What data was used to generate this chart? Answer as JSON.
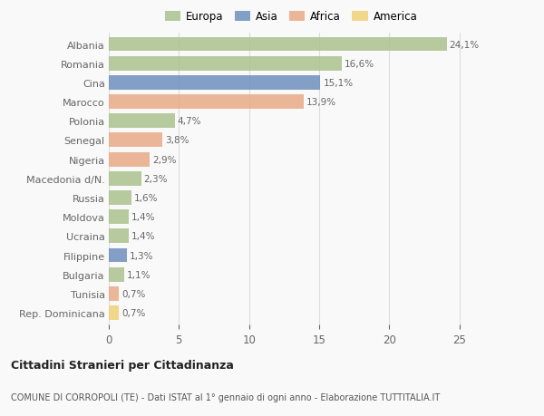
{
  "countries": [
    "Albania",
    "Romania",
    "Cina",
    "Marocco",
    "Polonia",
    "Senegal",
    "Nigeria",
    "Macedonia d/N.",
    "Russia",
    "Moldova",
    "Ucraina",
    "Filippine",
    "Bulgaria",
    "Tunisia",
    "Rep. Dominicana"
  ],
  "values": [
    24.1,
    16.6,
    15.1,
    13.9,
    4.7,
    3.8,
    2.9,
    2.3,
    1.6,
    1.4,
    1.4,
    1.3,
    1.1,
    0.7,
    0.7
  ],
  "labels": [
    "24,1%",
    "16,6%",
    "15,1%",
    "13,9%",
    "4,7%",
    "3,8%",
    "2,9%",
    "2,3%",
    "1,6%",
    "1,4%",
    "1,4%",
    "1,3%",
    "1,1%",
    "0,7%",
    "0,7%"
  ],
  "continents": [
    "Europa",
    "Europa",
    "Asia",
    "Africa",
    "Europa",
    "Africa",
    "Africa",
    "Europa",
    "Europa",
    "Europa",
    "Europa",
    "Asia",
    "Europa",
    "Africa",
    "America"
  ],
  "colors": {
    "Europa": "#a8c08a",
    "Asia": "#6b8cba",
    "Africa": "#e8a882",
    "America": "#f0d070"
  },
  "legend_labels": [
    "Europa",
    "Asia",
    "Africa",
    "America"
  ],
  "title_bold": "Cittadini Stranieri per Cittadinanza",
  "subtitle": "COMUNE DI CORROPOLI (TE) - Dati ISTAT al 1° gennaio di ogni anno - Elaborazione TUTTITALIA.IT",
  "xlim": [
    0,
    26
  ],
  "xticks": [
    0,
    5,
    10,
    15,
    20,
    25
  ],
  "background_color": "#f9f9f9",
  "bar_height": 0.75,
  "grid_color": "#dddddd",
  "text_color": "#666666",
  "label_color": "#666666"
}
